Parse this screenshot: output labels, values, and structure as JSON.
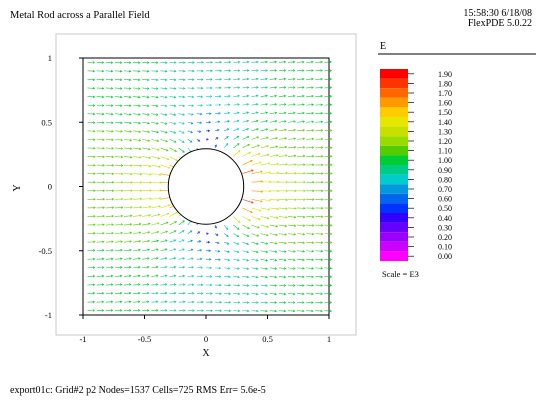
{
  "header": {
    "title": "Metal Rod across a Parallel Field",
    "timestamp": "15:58:30 6/18/08",
    "version": "FlexPDE 5.0.22"
  },
  "footer": {
    "info": "export01c:  Grid#2  p2  Nodes=1537 Cells=725 RMS Err= 5.6e-5"
  },
  "chart_data": {
    "type": "vector-field",
    "title": "Metal Rod across a Parallel Field",
    "xlabel": "X",
    "ylabel": "Y",
    "xlim": [
      -1,
      1
    ],
    "ylim": [
      -1,
      1
    ],
    "xticks": [
      "-1",
      "-0.5",
      "0",
      "0.5",
      "1"
    ],
    "yticks": [
      "1",
      "0.5",
      "0",
      "-0.5",
      "-1"
    ],
    "rod": {
      "center": [
        0,
        0
      ],
      "radius": 0.3
    },
    "field": {
      "name": "E",
      "uniform_direction": "+x",
      "magnitude_far": 1.0,
      "magnitude_max": 1.9
    },
    "legend": {
      "title": "E",
      "labels": [
        "1.90",
        "1.80",
        "1.70",
        "1.60",
        "1.50",
        "1.40",
        "1.30",
        "1.20",
        "1.10",
        "1.00",
        "0.90",
        "0.80",
        "0.70",
        "0.60",
        "0.50",
        "0.40",
        "0.30",
        "0.20",
        "0.10",
        "0.00"
      ],
      "colors": [
        "#ff0000",
        "#ff3300",
        "#ff6600",
        "#ff9900",
        "#ffcc00",
        "#e6e600",
        "#c8e000",
        "#99dd00",
        "#55cc00",
        "#00cc33",
        "#00cc88",
        "#00cccc",
        "#0099dd",
        "#0066ee",
        "#0033ff",
        "#3300ff",
        "#6600ff",
        "#9900ff",
        "#cc00ff",
        "#ff00ff"
      ],
      "scale_label": "Scale = E3"
    }
  }
}
